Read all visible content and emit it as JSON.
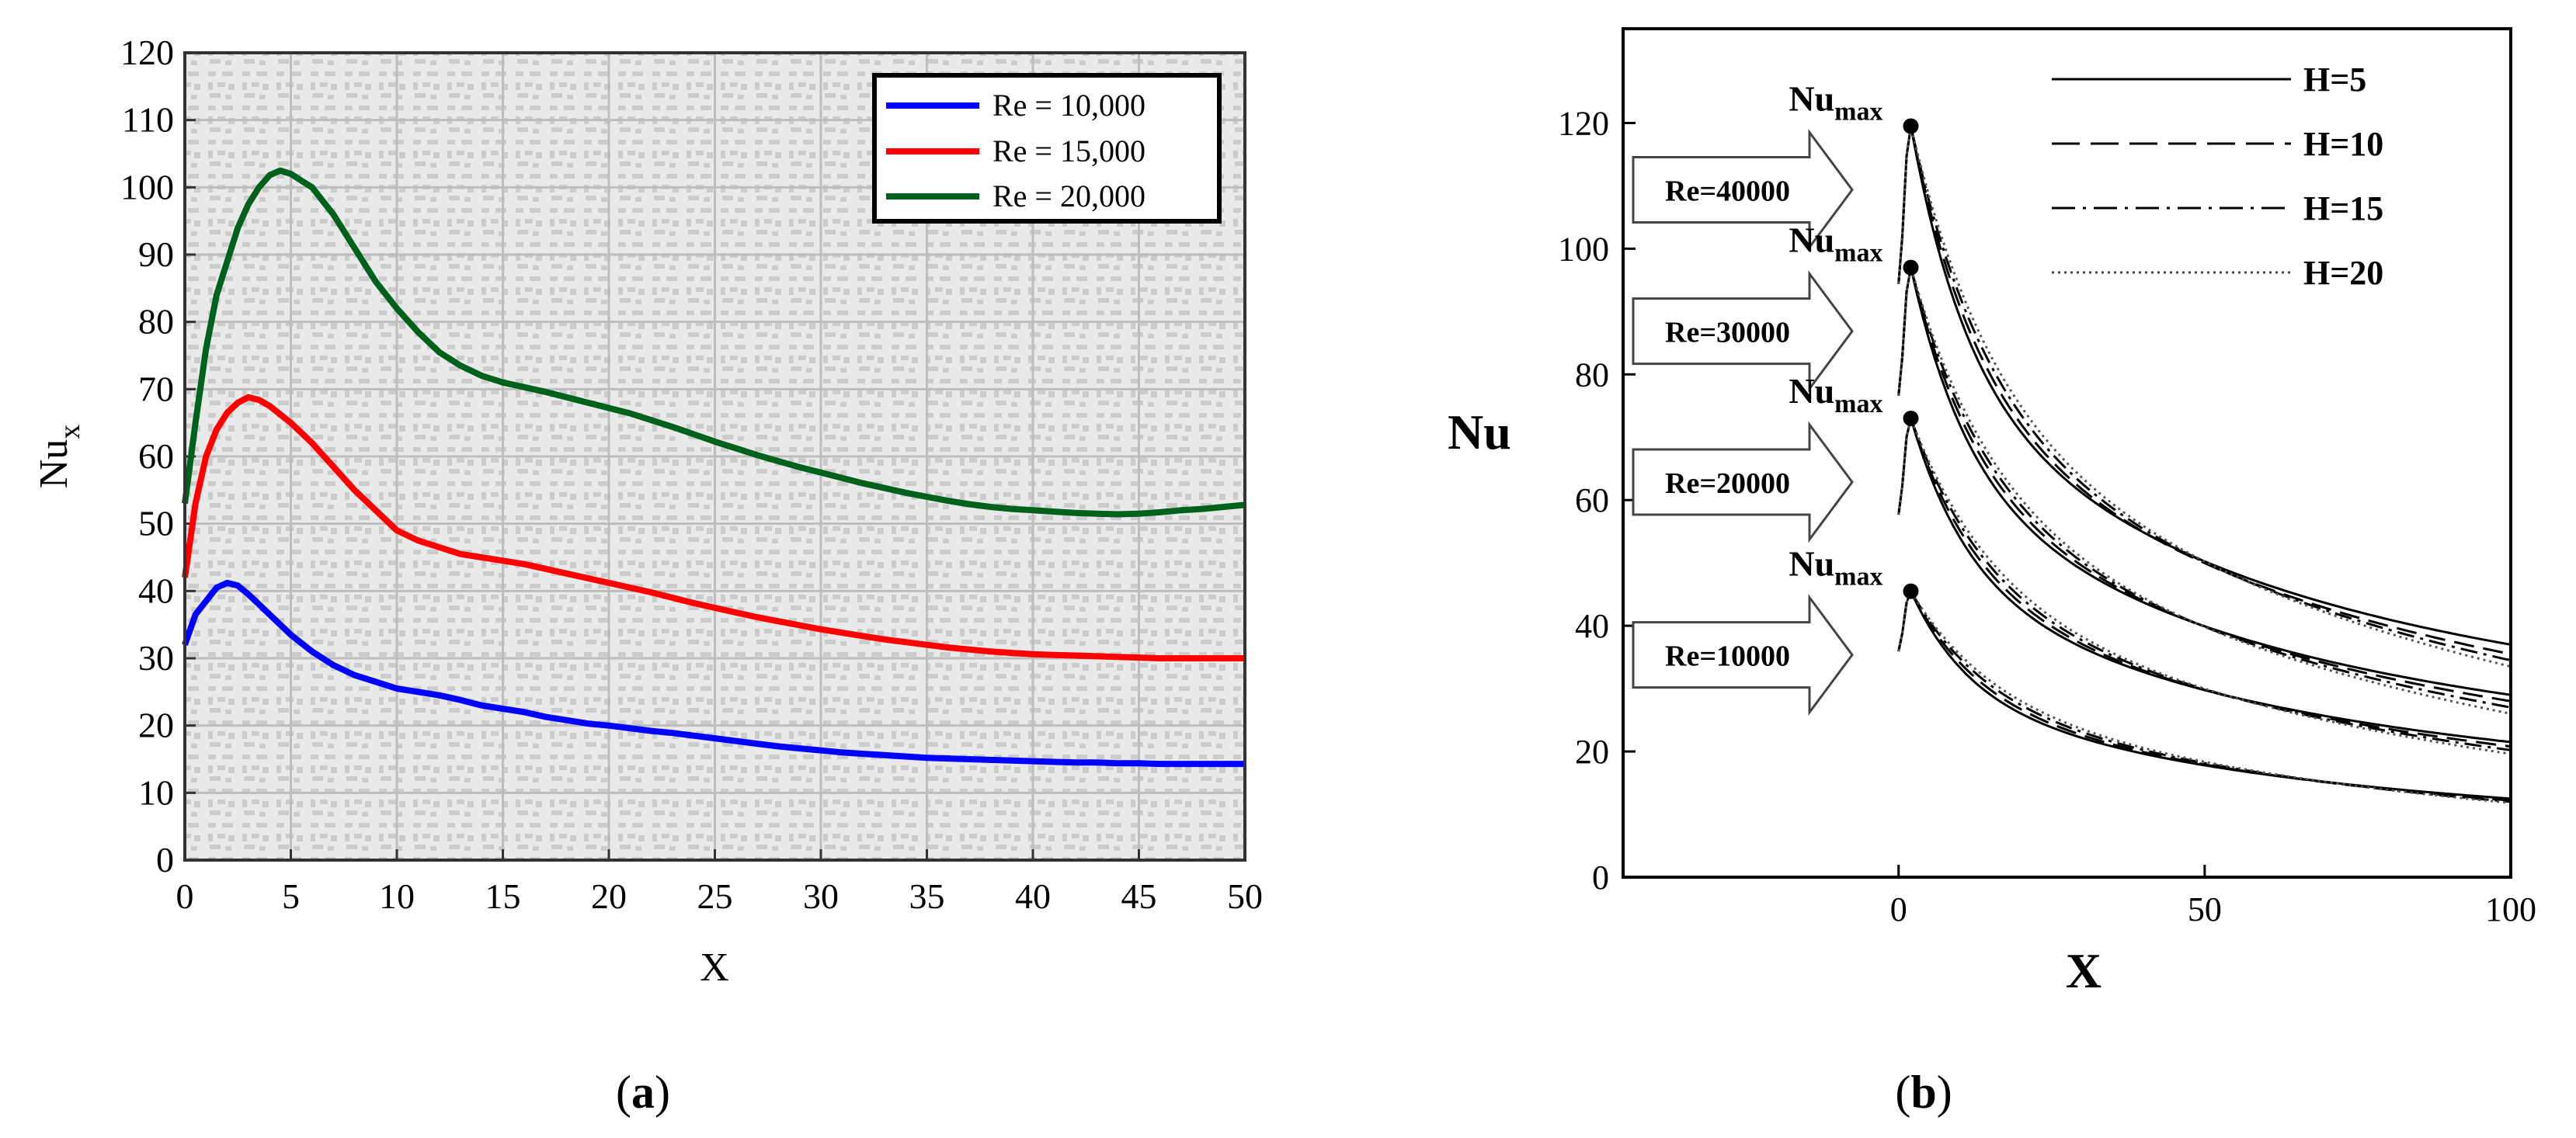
{
  "chart_data": [
    {
      "panel": "(a)",
      "type": "line",
      "title": "",
      "xlabel": "X",
      "ylabel": "Nu",
      "ylabel_sub": "x",
      "xlim": [
        0,
        50
      ],
      "ylim": [
        0,
        120
      ],
      "xticks": [
        "0",
        "5",
        "10",
        "15",
        "20",
        "25",
        "30",
        "35",
        "40",
        "45",
        "50"
      ],
      "yticks": [
        "0",
        "10",
        "20",
        "30",
        "40",
        "50",
        "60",
        "70",
        "80",
        "90",
        "100",
        "110",
        "120"
      ],
      "grid": true,
      "legend": "top-right",
      "series": [
        {
          "name": "Re = 10,000",
          "color": "#0000ff",
          "x": [
            0,
            0.5,
            1,
            1.5,
            2,
            2.5,
            3,
            3.5,
            4,
            5,
            6,
            7,
            8,
            9,
            10,
            11,
            12,
            13,
            14,
            15,
            16,
            17,
            18,
            19,
            20,
            21,
            22,
            23,
            24,
            25,
            26,
            27,
            28,
            29,
            30,
            31,
            32,
            33,
            34,
            35,
            36,
            37,
            38,
            39,
            40,
            41,
            42,
            43,
            44,
            45,
            46,
            47,
            48,
            49,
            50
          ],
          "values": [
            32,
            36.5,
            38.5,
            40.5,
            41.2,
            40.8,
            39.5,
            38,
            36.5,
            33.5,
            31,
            29,
            27.5,
            26.5,
            25.5,
            25,
            24.5,
            23.8,
            23,
            22.5,
            22,
            21.3,
            20.8,
            20.3,
            20,
            19.6,
            19.2,
            18.9,
            18.5,
            18.1,
            17.7,
            17.3,
            16.9,
            16.6,
            16.3,
            16,
            15.8,
            15.6,
            15.4,
            15.2,
            15.1,
            15,
            14.9,
            14.8,
            14.7,
            14.6,
            14.5,
            14.5,
            14.4,
            14.4,
            14.3,
            14.3,
            14.3,
            14.3,
            14.3
          ]
        },
        {
          "name": "Re = 15,000",
          "color": "#ff0000",
          "x": [
            0,
            0.5,
            1,
            1.5,
            2,
            2.5,
            3,
            3.5,
            4,
            5,
            6,
            7,
            8,
            9,
            10,
            11,
            12,
            13,
            14,
            15,
            16,
            17,
            18,
            19,
            20,
            21,
            22,
            23,
            24,
            25,
            26,
            27,
            28,
            29,
            30,
            31,
            32,
            33,
            34,
            35,
            36,
            37,
            38,
            39,
            40,
            41,
            42,
            43,
            44,
            45,
            46,
            47,
            48,
            49,
            50
          ],
          "values": [
            42,
            53,
            60,
            64,
            66.5,
            68,
            68.8,
            68.4,
            67.5,
            65,
            62,
            58.5,
            55,
            52,
            49,
            47.5,
            46.5,
            45.5,
            45,
            44.5,
            44,
            43.3,
            42.6,
            41.9,
            41.2,
            40.5,
            39.8,
            39,
            38.2,
            37.5,
            36.8,
            36.1,
            35.5,
            34.9,
            34.3,
            33.8,
            33.3,
            32.8,
            32.4,
            32,
            31.6,
            31.3,
            31,
            30.8,
            30.6,
            30.5,
            30.4,
            30.3,
            30.2,
            30.1,
            30,
            30,
            30,
            30,
            30
          ]
        },
        {
          "name": "Re = 20,000",
          "color": "#00611c",
          "x": [
            0,
            0.5,
            1,
            1.5,
            2,
            2.5,
            3,
            3.5,
            4,
            4.5,
            5,
            5.5,
            6,
            7,
            8,
            9,
            10,
            11,
            12,
            13,
            14,
            15,
            16,
            17,
            18,
            19,
            20,
            21,
            22,
            23,
            24,
            25,
            26,
            27,
            28,
            29,
            30,
            31,
            32,
            33,
            34,
            35,
            36,
            37,
            38,
            39,
            40,
            41,
            42,
            43,
            44,
            45,
            46,
            47,
            48,
            49,
            50
          ],
          "values": [
            53,
            65,
            76,
            84,
            89,
            94,
            97.5,
            100,
            101.8,
            102.5,
            102,
            101,
            100,
            96,
            91,
            86,
            82,
            78.5,
            75.5,
            73.5,
            72,
            71,
            70.3,
            69.6,
            68.8,
            68,
            67.2,
            66.4,
            65.4,
            64.4,
            63.3,
            62.2,
            61.2,
            60.2,
            59.3,
            58.4,
            57.6,
            56.8,
            56,
            55.3,
            54.6,
            54,
            53.4,
            52.9,
            52.5,
            52.2,
            52,
            51.8,
            51.6,
            51.5,
            51.4,
            51.5,
            51.7,
            52,
            52.2,
            52.5,
            52.8
          ]
        }
      ]
    },
    {
      "panel": "(b)",
      "type": "line",
      "title": "",
      "xlabel": "X",
      "ylabel": "Nu",
      "xlim": [
        -45,
        100
      ],
      "ylim": [
        0,
        135
      ],
      "xticks": [
        "0",
        "50",
        "100"
      ],
      "yticks": [
        "0",
        "20",
        "40",
        "60",
        "80",
        "100",
        "120"
      ],
      "grid": false,
      "legend": "top-right",
      "legend_entries": [
        {
          "label": "H=5",
          "style": "solid"
        },
        {
          "label": "H=10",
          "style": "dashed"
        },
        {
          "label": "H=15",
          "style": "dashdot"
        },
        {
          "label": "H=20",
          "style": "dotted"
        }
      ],
      "peak_label": "Nu",
      "peak_label_sub": "max",
      "annotations": [
        {
          "text": "Re=40000",
          "peak_x": 2,
          "peak_y": 119.5,
          "end_values": [
            37,
            35.5,
            34.5,
            33.5
          ]
        },
        {
          "text": "Re=30000",
          "peak_x": 2,
          "peak_y": 97,
          "end_values": [
            29,
            28,
            27,
            26
          ]
        },
        {
          "text": "Re=20000",
          "peak_x": 2,
          "peak_y": 73,
          "end_values": [
            21.5,
            20.8,
            20.2,
            19.6
          ]
        },
        {
          "text": "Re=10000",
          "peak_x": 2,
          "peak_y": 45.5,
          "end_values": [
            12.5,
            12.2,
            12.0,
            11.8
          ]
        }
      ]
    }
  ],
  "captions": {
    "a": "(a)",
    "b": "(b)"
  }
}
